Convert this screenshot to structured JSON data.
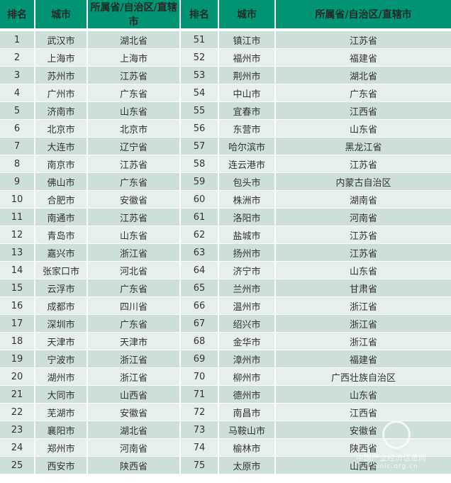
{
  "headers": [
    "排名",
    "城市",
    "所属省/自治区/直辖市",
    "排名",
    "城市",
    "所属省/自治区/直辖市"
  ],
  "rows": [
    [
      "1",
      "武汉市",
      "湖北省",
      "51",
      "镇江市",
      "江苏省"
    ],
    [
      "2",
      "上海市",
      "上海市",
      "52",
      "福州市",
      "福建省"
    ],
    [
      "3",
      "苏州市",
      "江苏省",
      "53",
      "荆州市",
      "湖北省"
    ],
    [
      "4",
      "广州市",
      "广东省",
      "54",
      "中山市",
      "广东省"
    ],
    [
      "5",
      "济南市",
      "山东省",
      "55",
      "宜春市",
      "江西省"
    ],
    [
      "6",
      "北京市",
      "北京市",
      "56",
      "东营市",
      "山东省"
    ],
    [
      "7",
      "大连市",
      "辽宁省",
      "57",
      "哈尔滨市",
      "黑龙江省"
    ],
    [
      "8",
      "南京市",
      "江苏省",
      "58",
      "连云港市",
      "江苏省"
    ],
    [
      "9",
      "佛山市",
      "广东省",
      "59",
      "包头市",
      "内蒙古自治区"
    ],
    [
      "10",
      "合肥市",
      "安徽省",
      "60",
      "株洲市",
      "湖南省"
    ],
    [
      "11",
      "南通市",
      "江苏省",
      "61",
      "洛阳市",
      "河南省"
    ],
    [
      "12",
      "青岛市",
      "山东省",
      "62",
      "盐城市",
      "江苏省"
    ],
    [
      "13",
      "嘉兴市",
      "浙江省",
      "63",
      "扬州市",
      "江苏省"
    ],
    [
      "14",
      "张家口市",
      "河北省",
      "64",
      "济宁市",
      "山东省"
    ],
    [
      "15",
      "云浮市",
      "广东省",
      "65",
      "兰州市",
      "甘肃省"
    ],
    [
      "16",
      "成都市",
      "四川省",
      "66",
      "温州市",
      "浙江省"
    ],
    [
      "17",
      "深圳市",
      "广东省",
      "67",
      "绍兴市",
      "浙江省"
    ],
    [
      "18",
      "天津市",
      "天津市",
      "68",
      "金华市",
      "浙江省"
    ],
    [
      "19",
      "宁波市",
      "浙江省",
      "69",
      "漳州市",
      "福建省"
    ],
    [
      "20",
      "湖州市",
      "浙江省",
      "70",
      "柳州市",
      "广西壮族自治区"
    ],
    [
      "21",
      "大同市",
      "山西省",
      "71",
      "德州市",
      "山东省"
    ],
    [
      "22",
      "芜湖市",
      "安徽省",
      "72",
      "南昌市",
      "江西省"
    ],
    [
      "23",
      "襄阳市",
      "湖北省",
      "73",
      "马鞍山市",
      "安徽省"
    ],
    [
      "24",
      "郑州市",
      "河南省",
      "74",
      "榆林市",
      "陕西省"
    ],
    [
      "25",
      "西安市",
      "陕西省",
      "75",
      "太原市",
      "山西省"
    ]
  ],
  "watermark": {
    "name": "中国产业经济信息网",
    "url": "cinic.org.cn"
  },
  "colors": {
    "header": "#009473",
    "row_odd": "#cddfd8",
    "row_even": "#e6efeb"
  }
}
